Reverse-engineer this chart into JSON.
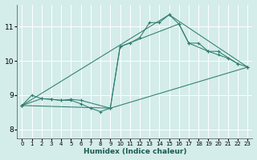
{
  "xlabel": "Humidex (Indice chaleur)",
  "bg_color": "#d4ecea",
  "grid_color": "#b8d8d8",
  "line_color": "#2e7d6e",
  "xlim": [
    -0.5,
    23.5
  ],
  "ylim": [
    7.75,
    11.65
  ],
  "xticks": [
    0,
    1,
    2,
    3,
    4,
    5,
    6,
    7,
    8,
    9,
    10,
    11,
    12,
    13,
    14,
    15,
    16,
    17,
    18,
    19,
    20,
    21,
    22,
    23
  ],
  "yticks": [
    8,
    9,
    10,
    11
  ],
  "series": [
    [
      [
        0,
        8.7
      ],
      [
        1,
        9.0
      ],
      [
        2,
        8.9
      ],
      [
        3,
        8.88
      ],
      [
        4,
        8.85
      ],
      [
        5,
        8.85
      ],
      [
        6,
        8.75
      ],
      [
        7,
        8.62
      ],
      [
        8,
        8.52
      ],
      [
        9,
        8.62
      ],
      [
        10,
        10.42
      ],
      [
        11,
        10.52
      ],
      [
        12,
        10.68
      ],
      [
        13,
        11.12
      ],
      [
        14,
        11.12
      ],
      [
        15,
        11.35
      ],
      [
        16,
        11.08
      ],
      [
        17,
        10.52
      ],
      [
        18,
        10.52
      ],
      [
        19,
        10.28
      ],
      [
        20,
        10.18
      ],
      [
        21,
        10.08
      ],
      [
        22,
        9.92
      ]
    ],
    [
      [
        0,
        8.7
      ],
      [
        2,
        8.9
      ],
      [
        3,
        8.88
      ],
      [
        4,
        8.85
      ],
      [
        5,
        8.88
      ],
      [
        6,
        8.85
      ],
      [
        9,
        8.62
      ],
      [
        10,
        10.42
      ],
      [
        16,
        11.08
      ],
      [
        17,
        10.52
      ],
      [
        19,
        10.28
      ],
      [
        20,
        10.28
      ],
      [
        22,
        9.92
      ],
      [
        23,
        9.82
      ]
    ],
    [
      [
        0,
        8.7
      ],
      [
        9,
        8.62
      ],
      [
        23,
        9.82
      ]
    ],
    [
      [
        0,
        8.7
      ],
      [
        15,
        11.35
      ],
      [
        23,
        9.82
      ]
    ]
  ]
}
